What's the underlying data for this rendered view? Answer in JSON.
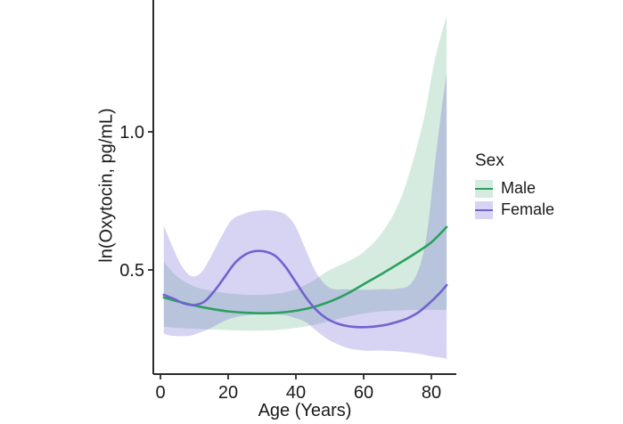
{
  "chart_data": {
    "type": "line",
    "title": "",
    "xlabel": "Age (Years)",
    "ylabel": "ln(Oxytocin, pg/mL)",
    "xlim": [
      0,
      87
    ],
    "ylim": [
      0.12,
      1.48
    ],
    "x_ticks": [
      0,
      20,
      40,
      60,
      80
    ],
    "y_ticks": [
      0.5,
      1.0
    ],
    "grid": false,
    "legend_title": "Sex",
    "legend_position": "right",
    "axis_color": "#2b2b2b",
    "series": [
      {
        "name": "Male",
        "line_color": "#2aa05f",
        "band_color": "rgba(64,164,110,0.22)",
        "x": [
          1,
          5,
          10,
          15,
          20,
          25,
          30,
          35,
          40,
          45,
          50,
          55,
          60,
          65,
          70,
          75,
          80,
          84.5
        ],
        "y": [
          0.4,
          0.386,
          0.371,
          0.359,
          0.35,
          0.345,
          0.343,
          0.345,
          0.352,
          0.365,
          0.385,
          0.413,
          0.448,
          0.483,
          0.52,
          0.558,
          0.6,
          0.655
        ],
        "band": {
          "x": [
            1,
            5,
            10,
            15,
            20,
            25,
            30,
            35,
            40,
            45,
            50,
            55,
            60,
            65,
            70,
            74,
            78,
            81,
            84.5
          ],
          "upper": [
            0.53,
            0.475,
            0.44,
            0.425,
            0.415,
            0.41,
            0.41,
            0.415,
            0.43,
            0.46,
            0.5,
            0.528,
            0.565,
            0.628,
            0.73,
            0.87,
            1.06,
            1.26,
            1.42
          ],
          "lower": [
            0.295,
            0.29,
            0.287,
            0.284,
            0.282,
            0.28,
            0.28,
            0.283,
            0.29,
            0.3,
            0.315,
            0.33,
            0.342,
            0.35,
            0.353,
            0.355,
            0.355,
            0.355,
            0.355
          ]
        }
      },
      {
        "name": "Female",
        "line_color": "#6f63cf",
        "band_color": "rgba(108,94,212,0.27)",
        "x": [
          1,
          4,
          7,
          10,
          13,
          16,
          19,
          22,
          25,
          28,
          31,
          34,
          37,
          40,
          43,
          46,
          49,
          52,
          55,
          58,
          61,
          64,
          67,
          70,
          73,
          76,
          79,
          82,
          84.5
        ],
        "y": [
          0.41,
          0.395,
          0.378,
          0.373,
          0.385,
          0.425,
          0.475,
          0.525,
          0.555,
          0.568,
          0.566,
          0.55,
          0.51,
          0.455,
          0.4,
          0.355,
          0.325,
          0.307,
          0.297,
          0.293,
          0.293,
          0.296,
          0.302,
          0.312,
          0.325,
          0.345,
          0.375,
          0.41,
          0.445
        ],
        "band": {
          "x": [
            1,
            3,
            6,
            9,
            12,
            15,
            18,
            21,
            25,
            29,
            33,
            37,
            40,
            43,
            46,
            50,
            55,
            60,
            65,
            70,
            74,
            77,
            79,
            81,
            83,
            84.5
          ],
          "upper": [
            0.66,
            0.6,
            0.52,
            0.478,
            0.49,
            0.55,
            0.62,
            0.68,
            0.705,
            0.715,
            0.715,
            0.7,
            0.655,
            0.57,
            0.49,
            0.435,
            0.43,
            0.428,
            0.43,
            0.432,
            0.45,
            0.53,
            0.66,
            0.88,
            1.08,
            1.21
          ],
          "lower": [
            0.27,
            0.262,
            0.26,
            0.262,
            0.275,
            0.29,
            0.31,
            0.325,
            0.335,
            0.34,
            0.34,
            0.335,
            0.325,
            0.31,
            0.28,
            0.245,
            0.218,
            0.208,
            0.208,
            0.205,
            0.2,
            0.195,
            0.19,
            0.185,
            0.182,
            0.178
          ]
        }
      }
    ]
  }
}
